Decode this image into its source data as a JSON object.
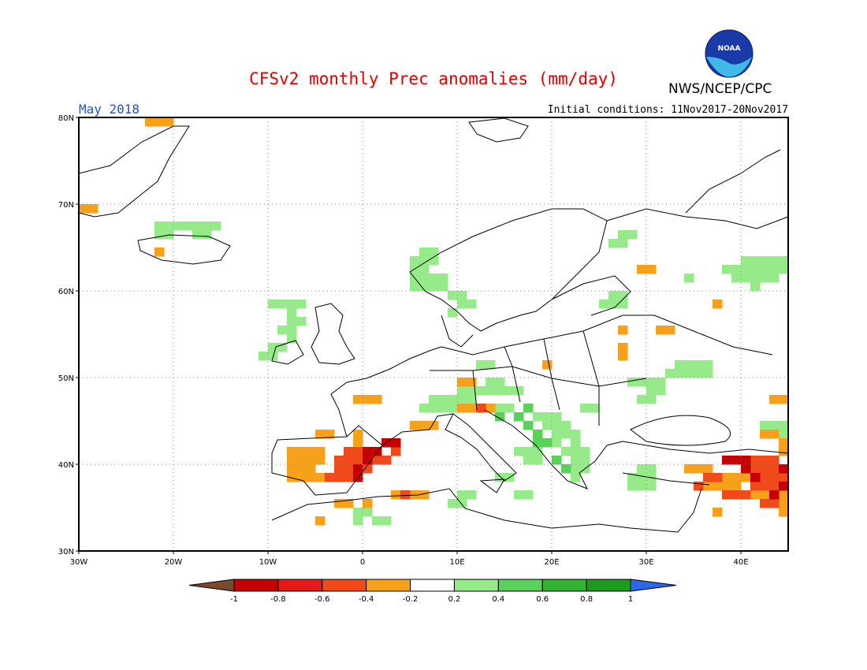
{
  "title": "CFSv2 monthly Prec anomalies (mm/day)",
  "organization": "NWS/NCEP/CPC",
  "logo_text": "NOAA",
  "month": "May 2018",
  "initial_conditions": "Initial conditions: 11Nov2017-20Nov2017",
  "map": {
    "lon_range": [
      -30,
      45
    ],
    "lat_range": [
      30,
      80
    ],
    "lat_labels": [
      "80N",
      "70N",
      "60N",
      "50N",
      "40N",
      "30N"
    ],
    "lon_labels": [
      "30W",
      "20W",
      "10W",
      "0",
      "10E",
      "20E",
      "30E",
      "40E"
    ]
  },
  "legend": {
    "labels": [
      "-1",
      "-0.8",
      "-0.6",
      "-0.4",
      "-0.2",
      "0.2",
      "0.4",
      "0.6",
      "0.8",
      "1"
    ],
    "colors": [
      "#7b4a2e",
      "#c40000",
      "#e41a1a",
      "#f04a1a",
      "#f7a01a",
      "#ffffff",
      "#96ea8a",
      "#5ad25a",
      "#32b432",
      "#1e9a1e",
      "#2a6ae8"
    ]
  },
  "anomaly_cells": {
    "cell_deg": 1,
    "wet_light": [
      [
        -22,
        67
      ],
      [
        -21,
        67
      ],
      [
        -20,
        67
      ],
      [
        -19,
        67
      ],
      [
        -18,
        67
      ],
      [
        -17,
        67
      ],
      [
        -16,
        67
      ],
      [
        -22,
        66
      ],
      [
        -21,
        66
      ],
      [
        -18,
        66
      ],
      [
        -17,
        66
      ],
      [
        -10,
        58
      ],
      [
        -9,
        58
      ],
      [
        -8,
        58
      ],
      [
        -7,
        58
      ],
      [
        -8,
        57
      ],
      [
        -8,
        56
      ],
      [
        -7,
        56
      ],
      [
        -9,
        55
      ],
      [
        -8,
        55
      ],
      [
        -10,
        53
      ],
      [
        -9,
        53
      ],
      [
        -11,
        52
      ],
      [
        -10,
        52
      ],
      [
        -8,
        54
      ],
      [
        6,
        64
      ],
      [
        7,
        64
      ],
      [
        5,
        63
      ],
      [
        6,
        63
      ],
      [
        7,
        63
      ],
      [
        5,
        62
      ],
      [
        6,
        62
      ],
      [
        5,
        61
      ],
      [
        6,
        61
      ],
      [
        7,
        61
      ],
      [
        8,
        61
      ],
      [
        5,
        60
      ],
      [
        6,
        60
      ],
      [
        7,
        60
      ],
      [
        8,
        60
      ],
      [
        9,
        59
      ],
      [
        10,
        59
      ],
      [
        10,
        58
      ],
      [
        11,
        58
      ],
      [
        9,
        57
      ],
      [
        27,
        66
      ],
      [
        28,
        66
      ],
      [
        26,
        65
      ],
      [
        27,
        65
      ],
      [
        34,
        61
      ],
      [
        40,
        63
      ],
      [
        41,
        63
      ],
      [
        42,
        63
      ],
      [
        43,
        63
      ],
      [
        44,
        63
      ],
      [
        38,
        62
      ],
      [
        39,
        62
      ],
      [
        40,
        62
      ],
      [
        41,
        62
      ],
      [
        42,
        62
      ],
      [
        43,
        62
      ],
      [
        44,
        62
      ],
      [
        39,
        61
      ],
      [
        40,
        61
      ],
      [
        41,
        61
      ],
      [
        42,
        61
      ],
      [
        43,
        61
      ],
      [
        41,
        60
      ],
      [
        26,
        59
      ],
      [
        27,
        59
      ],
      [
        25,
        58
      ],
      [
        26,
        58
      ],
      [
        27,
        58
      ],
      [
        12,
        51
      ],
      [
        13,
        51
      ],
      [
        13,
        49
      ],
      [
        14,
        49
      ],
      [
        10,
        48
      ],
      [
        11,
        48
      ],
      [
        12,
        48
      ],
      [
        13,
        48
      ],
      [
        14,
        48
      ],
      [
        15,
        48
      ],
      [
        16,
        48
      ],
      [
        7,
        47
      ],
      [
        8,
        47
      ],
      [
        9,
        47
      ],
      [
        10,
        47
      ],
      [
        11,
        47
      ],
      [
        14,
        46
      ],
      [
        15,
        46
      ],
      [
        23,
        46
      ],
      [
        24,
        46
      ],
      [
        6,
        46
      ],
      [
        7,
        46
      ],
      [
        8,
        46
      ],
      [
        9,
        46
      ],
      [
        10,
        46
      ],
      [
        18,
        45
      ],
      [
        19,
        45
      ],
      [
        20,
        45
      ],
      [
        19,
        44
      ],
      [
        20,
        44
      ],
      [
        21,
        44
      ],
      [
        20,
        43
      ],
      [
        21,
        43
      ],
      [
        22,
        43
      ],
      [
        20,
        42
      ],
      [
        22,
        42
      ],
      [
        21,
        41
      ],
      [
        22,
        41
      ],
      [
        23,
        41
      ],
      [
        22,
        40
      ],
      [
        23,
        40
      ],
      [
        22,
        39
      ],
      [
        23,
        39
      ],
      [
        22,
        38
      ],
      [
        16,
        41
      ],
      [
        17,
        41
      ],
      [
        18,
        41
      ],
      [
        17,
        40
      ],
      [
        18,
        40
      ],
      [
        14,
        38
      ],
      [
        15,
        38
      ],
      [
        16,
        36
      ],
      [
        17,
        36
      ],
      [
        33,
        51
      ],
      [
        34,
        51
      ],
      [
        35,
        51
      ],
      [
        36,
        51
      ],
      [
        32,
        50
      ],
      [
        33,
        50
      ],
      [
        34,
        50
      ],
      [
        35,
        50
      ],
      [
        36,
        50
      ],
      [
        30,
        49
      ],
      [
        31,
        49
      ],
      [
        30,
        48
      ],
      [
        31,
        48
      ],
      [
        28,
        49
      ],
      [
        29,
        49
      ],
      [
        29,
        47
      ],
      [
        30,
        47
      ],
      [
        29,
        39
      ],
      [
        30,
        39
      ],
      [
        28,
        38
      ],
      [
        29,
        38
      ],
      [
        30,
        38
      ],
      [
        28,
        37
      ],
      [
        29,
        37
      ],
      [
        30,
        37
      ],
      [
        10,
        36
      ],
      [
        11,
        36
      ],
      [
        9,
        35
      ],
      [
        10,
        35
      ],
      [
        -1,
        34
      ],
      [
        0,
        34
      ],
      [
        1,
        33
      ],
      [
        2,
        33
      ],
      [
        -1,
        33
      ],
      [
        42,
        44
      ],
      [
        43,
        44
      ],
      [
        44,
        44
      ],
      [
        43,
        43
      ],
      [
        44,
        43
      ]
    ],
    "wet_mid": [
      [
        14,
        45
      ],
      [
        16,
        45
      ],
      [
        17,
        44
      ],
      [
        18,
        43
      ],
      [
        19,
        42
      ],
      [
        20,
        40
      ],
      [
        21,
        39
      ],
      [
        13,
        46
      ],
      [
        17,
        46
      ],
      [
        18,
        42
      ]
    ],
    "dry_light": [
      [
        -23,
        79
      ],
      [
        -22,
        79
      ],
      [
        -21,
        79
      ],
      [
        -30,
        69
      ],
      [
        -29,
        69
      ],
      [
        -22,
        64
      ],
      [
        -5,
        43
      ],
      [
        -4,
        43
      ],
      [
        -8,
        41
      ],
      [
        -7,
        41
      ],
      [
        -6,
        41
      ],
      [
        -5,
        41
      ],
      [
        -8,
        40
      ],
      [
        -7,
        40
      ],
      [
        -6,
        40
      ],
      [
        -5,
        40
      ],
      [
        -8,
        39
      ],
      [
        -7,
        39
      ],
      [
        -6,
        39
      ],
      [
        -8,
        38
      ],
      [
        -7,
        38
      ],
      [
        -6,
        38
      ],
      [
        -5,
        38
      ],
      [
        -1,
        43
      ],
      [
        -1,
        42
      ],
      [
        -1,
        47
      ],
      [
        0,
        47
      ],
      [
        1,
        47
      ],
      [
        10,
        49
      ],
      [
        11,
        49
      ],
      [
        10,
        46
      ],
      [
        11,
        46
      ],
      [
        13,
        46
      ],
      [
        5,
        44
      ],
      [
        6,
        44
      ],
      [
        7,
        44
      ],
      [
        5,
        36
      ],
      [
        6,
        36
      ],
      [
        3,
        36
      ],
      [
        4,
        36
      ],
      [
        -2,
        35
      ],
      [
        -3,
        35
      ],
      [
        0,
        35
      ],
      [
        -5,
        33
      ],
      [
        29,
        62
      ],
      [
        30,
        62
      ],
      [
        37,
        58
      ],
      [
        27,
        55
      ],
      [
        31,
        55
      ],
      [
        32,
        55
      ],
      [
        27,
        53
      ],
      [
        27,
        52
      ],
      [
        19,
        51
      ],
      [
        34,
        39
      ],
      [
        35,
        39
      ],
      [
        36,
        39
      ],
      [
        38,
        38
      ],
      [
        39,
        38
      ],
      [
        40,
        38
      ],
      [
        36,
        37
      ],
      [
        37,
        37
      ],
      [
        38,
        37
      ],
      [
        39,
        37
      ],
      [
        40,
        36
      ],
      [
        37,
        34
      ],
      [
        43,
        47
      ],
      [
        44,
        47
      ],
      [
        42,
        43
      ],
      [
        43,
        43
      ],
      [
        44,
        42
      ],
      [
        40,
        40
      ],
      [
        44,
        41
      ],
      [
        41,
        36
      ],
      [
        42,
        36
      ],
      [
        43,
        36
      ],
      [
        44,
        36
      ],
      [
        44,
        35
      ],
      [
        44,
        34
      ]
    ],
    "dry_mid": [
      [
        -2,
        41
      ],
      [
        -1,
        41
      ],
      [
        -3,
        40
      ],
      [
        -2,
        40
      ],
      [
        -1,
        40
      ],
      [
        -3,
        39
      ],
      [
        -2,
        39
      ],
      [
        -1,
        39
      ],
      [
        0,
        39
      ],
      [
        -4,
        38
      ],
      [
        -3,
        38
      ],
      [
        -2,
        38
      ],
      [
        1,
        40
      ],
      [
        2,
        40
      ],
      [
        3,
        41
      ],
      [
        4,
        36
      ],
      [
        12,
        46
      ],
      [
        36,
        38
      ],
      [
        37,
        38
      ],
      [
        35,
        37
      ],
      [
        38,
        36
      ],
      [
        39,
        36
      ],
      [
        40,
        36
      ],
      [
        41,
        40
      ],
      [
        42,
        40
      ],
      [
        43,
        40
      ],
      [
        41,
        39
      ],
      [
        42,
        39
      ],
      [
        43,
        39
      ],
      [
        42,
        38
      ],
      [
        43,
        38
      ],
      [
        44,
        38
      ],
      [
        41,
        37
      ],
      [
        42,
        37
      ],
      [
        43,
        37
      ],
      [
        42,
        35
      ],
      [
        43,
        35
      ]
    ],
    "dry_strong": [
      [
        0,
        41
      ],
      [
        1,
        41
      ],
      [
        0,
        40
      ],
      [
        -1,
        39
      ],
      [
        -1,
        38
      ],
      [
        2,
        42
      ],
      [
        3,
        42
      ],
      [
        38,
        40
      ],
      [
        39,
        40
      ],
      [
        40,
        40
      ],
      [
        40,
        39
      ],
      [
        41,
        38
      ],
      [
        43,
        36
      ],
      [
        44,
        37
      ],
      [
        44,
        39
      ]
    ]
  }
}
